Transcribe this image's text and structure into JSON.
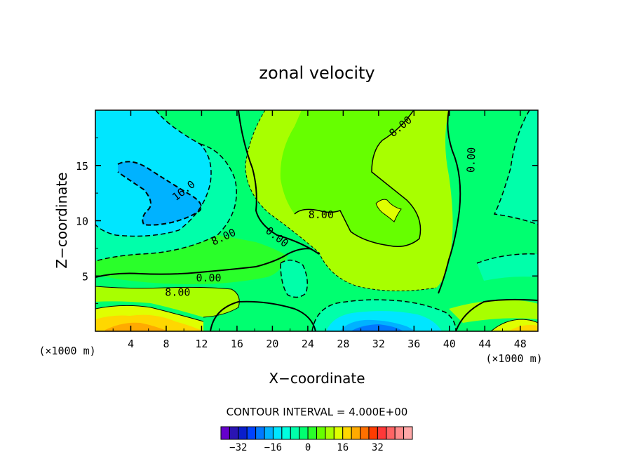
{
  "chart_data": {
    "type": "contour",
    "title": "zonal velocity",
    "xlabel": "X−coordinate",
    "ylabel": "Z−coordinate",
    "x_unit_label": "(×1000 m)",
    "y_unit_label": "(×1000 m)",
    "xlim": [
      0,
      50
    ],
    "ylim": [
      0,
      20
    ],
    "x_ticks": [
      4,
      8,
      12,
      16,
      20,
      24,
      28,
      32,
      36,
      40,
      44,
      48
    ],
    "x_tick_labels": [
      "4",
      "8",
      "12",
      "16",
      "20",
      "24",
      "28",
      "32",
      "36",
      "40",
      "44",
      "48"
    ],
    "y_ticks": [
      5,
      10,
      15
    ],
    "y_tick_labels": [
      "5",
      "10",
      "15"
    ],
    "contour_interval_text": "CONTOUR INTERVAL = 4.000E+00",
    "contour_labels": [
      {
        "text": "16.0",
        "x": 10.0,
        "z": 12.7,
        "angle": -38
      },
      {
        "text": "8.00",
        "x": 14.5,
        "z": 8.5,
        "angle": -25
      },
      {
        "text": "0.00",
        "x": 20.5,
        "z": 8.5,
        "angle": 38
      },
      {
        "text": "8.00",
        "x": 25.5,
        "z": 10.5,
        "angle": 0
      },
      {
        "text": "8.00",
        "x": 34.5,
        "z": 18.5,
        "angle": -40
      },
      {
        "text": "0.00",
        "x": 42.5,
        "z": 15.5,
        "angle": -88
      },
      {
        "text": "0.00",
        "x": 12.8,
        "z": 4.8,
        "angle": 0
      },
      {
        "text": "8.00",
        "x": 9.3,
        "z": 3.5,
        "angle": 0
      }
    ],
    "colorbar": {
      "levels": [
        -36,
        -32,
        -28,
        -24,
        -20,
        -16,
        -12,
        -8,
        -4,
        0,
        4,
        8,
        12,
        16,
        20,
        24,
        28,
        32,
        36
      ],
      "colors": [
        "#6600cc",
        "#2a14b3",
        "#0a1ecc",
        "#0042ff",
        "#0078ff",
        "#00b2ff",
        "#00e6ff",
        "#00ffe0",
        "#00ffaa",
        "#00ff70",
        "#2aff2a",
        "#66ff00",
        "#a8ff00",
        "#e0ff00",
        "#ffd700",
        "#ffaa00",
        "#ff7000",
        "#ff3c00",
        "#ff3838",
        "#ff6464",
        "#ff8c8c",
        "#ffa8a8"
      ],
      "tick_labels": [
        {
          "text": "−32",
          "value": -32
        },
        {
          "text": "−16",
          "value": -16
        },
        {
          "text": "0",
          "value": 0
        },
        {
          "text": "16",
          "value": 16
        },
        {
          "text": "32",
          "value": 32
        }
      ]
    }
  }
}
